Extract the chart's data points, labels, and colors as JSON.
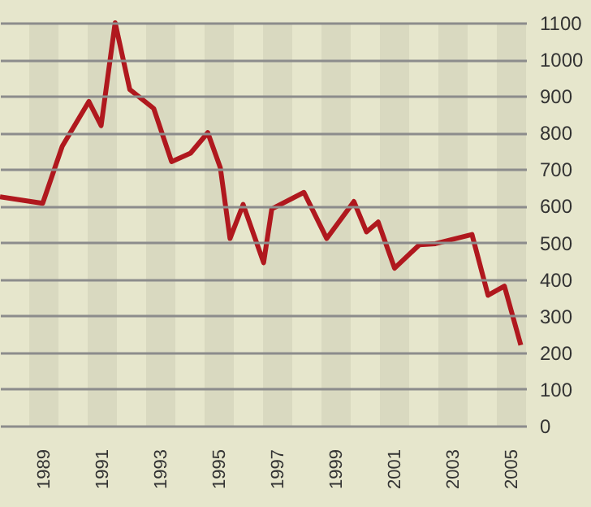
{
  "chart_data": {
    "type": "line",
    "x": [
      1988.0,
      1989.46,
      1990.13,
      1991.04,
      1991.46,
      1991.94,
      1992.44,
      1993.26,
      1993.87,
      1994.52,
      1995.11,
      1995.54,
      1995.87,
      1996.32,
      1997.02,
      1997.3,
      1998.4,
      1999.18,
      2000.11,
      2000.54,
      2000.94,
      2001.5,
      2002.35,
      2002.9,
      2004.15,
      2004.7,
      2005.26,
      2005.82
    ],
    "series": [
      {
        "color": "#b0181e",
        "values": [
          625,
          607,
          763,
          885,
          819,
          1100,
          918,
          866,
          721,
          744,
          800,
          704,
          511,
          604,
          445,
          592,
          637,
          511,
          612,
          529,
          556,
          430,
          494,
          497,
          522,
          356,
          381,
          220
        ]
      }
    ],
    "xlim": [
      1988,
      2006
    ],
    "xticks": [
      {
        "value": 1989.5,
        "label": "1989"
      },
      {
        "value": 1991.5,
        "label": "1991"
      },
      {
        "value": 1993.5,
        "label": "1993"
      },
      {
        "value": 1995.5,
        "label": "1995"
      },
      {
        "value": 1997.5,
        "label": "1997"
      },
      {
        "value": 1999.5,
        "label": "1999"
      },
      {
        "value": 2001.5,
        "label": "2001"
      },
      {
        "value": 2003.5,
        "label": "2003"
      },
      {
        "value": 2005.5,
        "label": "2005"
      }
    ],
    "ylim": [
      0,
      1100
    ],
    "yticks": [
      0,
      100,
      200,
      300,
      400,
      500,
      600,
      700,
      800,
      900,
      1000,
      1100
    ],
    "grid": "y",
    "marker": "none",
    "line_style": "solid",
    "bands": [
      {
        "axis": "x",
        "from": 1989,
        "to": 1990,
        "color": "#d9d9c0"
      },
      {
        "axis": "x",
        "from": 1991,
        "to": 1992,
        "color": "#d9d9c0"
      },
      {
        "axis": "x",
        "from": 1993,
        "to": 1994,
        "color": "#d9d9c0"
      },
      {
        "axis": "x",
        "from": 1995,
        "to": 1996,
        "color": "#d9d9c0"
      },
      {
        "axis": "x",
        "from": 1997,
        "to": 1998,
        "color": "#d9d9c0"
      },
      {
        "axis": "x",
        "from": 1999,
        "to": 2000,
        "color": "#d9d9c0"
      },
      {
        "axis": "x",
        "from": 2001,
        "to": 2002,
        "color": "#d9d9c0"
      },
      {
        "axis": "x",
        "from": 2003,
        "to": 2004,
        "color": "#d9d9c0"
      },
      {
        "axis": "x",
        "from": 2005,
        "to": 2006,
        "color": "#d9d9c0"
      }
    ]
  }
}
